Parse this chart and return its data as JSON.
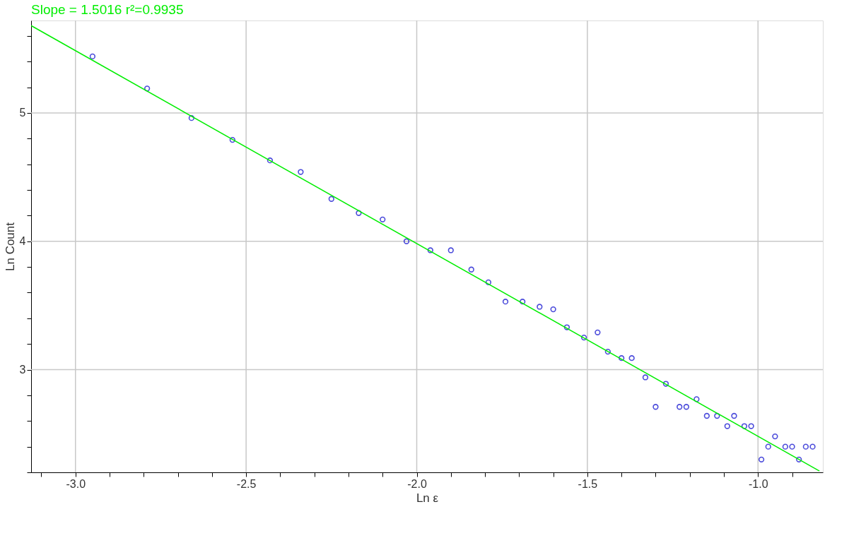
{
  "chart_data": {
    "type": "scatter",
    "title": "Slope = 1.5016 r²=0.9935",
    "xlabel": "Ln ε",
    "ylabel": "Ln Count",
    "xlim": [
      -3.13,
      -0.81
    ],
    "ylim": [
      2.2,
      5.72
    ],
    "xticks": [
      {
        "value": -3.1,
        "label": null
      },
      {
        "value": -3.0,
        "label": "-3.0"
      },
      {
        "value": -2.9,
        "label": null
      },
      {
        "value": -2.8,
        "label": null
      },
      {
        "value": -2.7,
        "label": null
      },
      {
        "value": -2.6,
        "label": null
      },
      {
        "value": -2.5,
        "label": "-2.5"
      },
      {
        "value": -2.4,
        "label": null
      },
      {
        "value": -2.3,
        "label": null
      },
      {
        "value": -2.2,
        "label": null
      },
      {
        "value": -2.1,
        "label": null
      },
      {
        "value": -2.0,
        "label": "-2.0"
      },
      {
        "value": -1.9,
        "label": null
      },
      {
        "value": -1.8,
        "label": null
      },
      {
        "value": -1.7,
        "label": null
      },
      {
        "value": -1.6,
        "label": null
      },
      {
        "value": -1.5,
        "label": "-1.5"
      },
      {
        "value": -1.4,
        "label": null
      },
      {
        "value": -1.3,
        "label": null
      },
      {
        "value": -1.2,
        "label": null
      },
      {
        "value": -1.1,
        "label": null
      },
      {
        "value": -1.0,
        "label": "-1.0"
      },
      {
        "value": -0.9,
        "label": null
      }
    ],
    "yticks": [
      {
        "value": 2.2,
        "label": null
      },
      {
        "value": 2.4,
        "label": null
      },
      {
        "value": 2.6,
        "label": null
      },
      {
        "value": 2.8,
        "label": null
      },
      3,
      {
        "value": 3.2,
        "label": null
      },
      {
        "value": 3.4,
        "label": null
      },
      {
        "value": 3.6,
        "label": null
      },
      {
        "value": 3.8,
        "label": null
      },
      4,
      {
        "value": 4.2,
        "label": null
      },
      {
        "value": 4.4,
        "label": null
      },
      {
        "value": 4.6,
        "label": null
      },
      {
        "value": 4.8,
        "label": null
      },
      5,
      {
        "value": 5.2,
        "label": null
      },
      {
        "value": 5.4,
        "label": null
      },
      {
        "value": 5.6,
        "label": null
      }
    ],
    "grid": true,
    "marker": "circle",
    "series": [
      {
        "type": "scatter",
        "color": "#0000cc",
        "x": [
          -2.95,
          -2.79,
          -2.66,
          -2.54,
          -2.43,
          -2.34,
          -2.25,
          -2.17,
          -2.1,
          -2.03,
          -1.96,
          -1.9,
          -1.84,
          -1.79,
          -1.74,
          -1.69,
          -1.64,
          -1.6,
          -1.56,
          -1.51,
          -1.47,
          -1.44,
          -1.4,
          -1.37,
          -1.33,
          -1.3,
          -1.27,
          -1.23,
          -1.21,
          -1.18,
          -1.15,
          -1.12,
          -1.09,
          -1.07,
          -1.04,
          -1.02,
          -0.99,
          -0.97,
          -0.95,
          -0.92,
          -0.9,
          -0.88,
          -0.86,
          -0.84
        ],
        "values": [
          5.44,
          5.19,
          4.96,
          4.79,
          4.63,
          4.54,
          4.33,
          4.22,
          4.17,
          4.0,
          3.93,
          3.93,
          3.78,
          3.68,
          3.53,
          3.53,
          3.49,
          3.47,
          3.33,
          3.25,
          3.29,
          3.14,
          3.09,
          3.09,
          2.94,
          2.71,
          2.89,
          2.71,
          2.71,
          2.77,
          2.64,
          2.64,
          2.56,
          2.64,
          2.56,
          2.56,
          2.3,
          2.4,
          2.48,
          2.4,
          2.4,
          2.3,
          2.4,
          2.4
        ]
      },
      {
        "type": "line",
        "marker": "none",
        "color": "#00ee00",
        "x": [
          -3.13,
          -0.82
        ],
        "values": [
          5.68,
          2.21
        ]
      }
    ]
  }
}
